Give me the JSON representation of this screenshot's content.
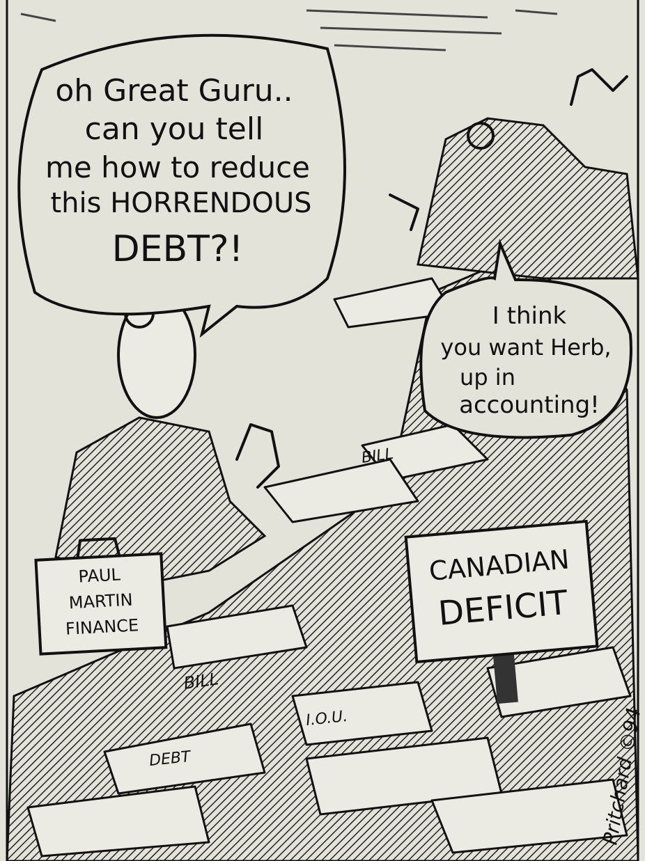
{
  "speech_bubbles": [
    {
      "lines": [
        "oh Great Guru..",
        "can you tell",
        "me how to reduce",
        "this HORRENDOUS",
        "DEBT?!"
      ]
    },
    {
      "lines": [
        "I think",
        "you want Herb,",
        "up in",
        "accounting!"
      ]
    }
  ],
  "briefcase": {
    "lines": [
      "PAUL",
      "MARTIN",
      "FINANCE"
    ]
  },
  "sign": {
    "lines": [
      "CANADIAN",
      "DEFICIT"
    ]
  },
  "papers": [
    "BILL",
    "BILL",
    "I.O.U.",
    "DEBT"
  ],
  "signature": "Pritchard ©94"
}
